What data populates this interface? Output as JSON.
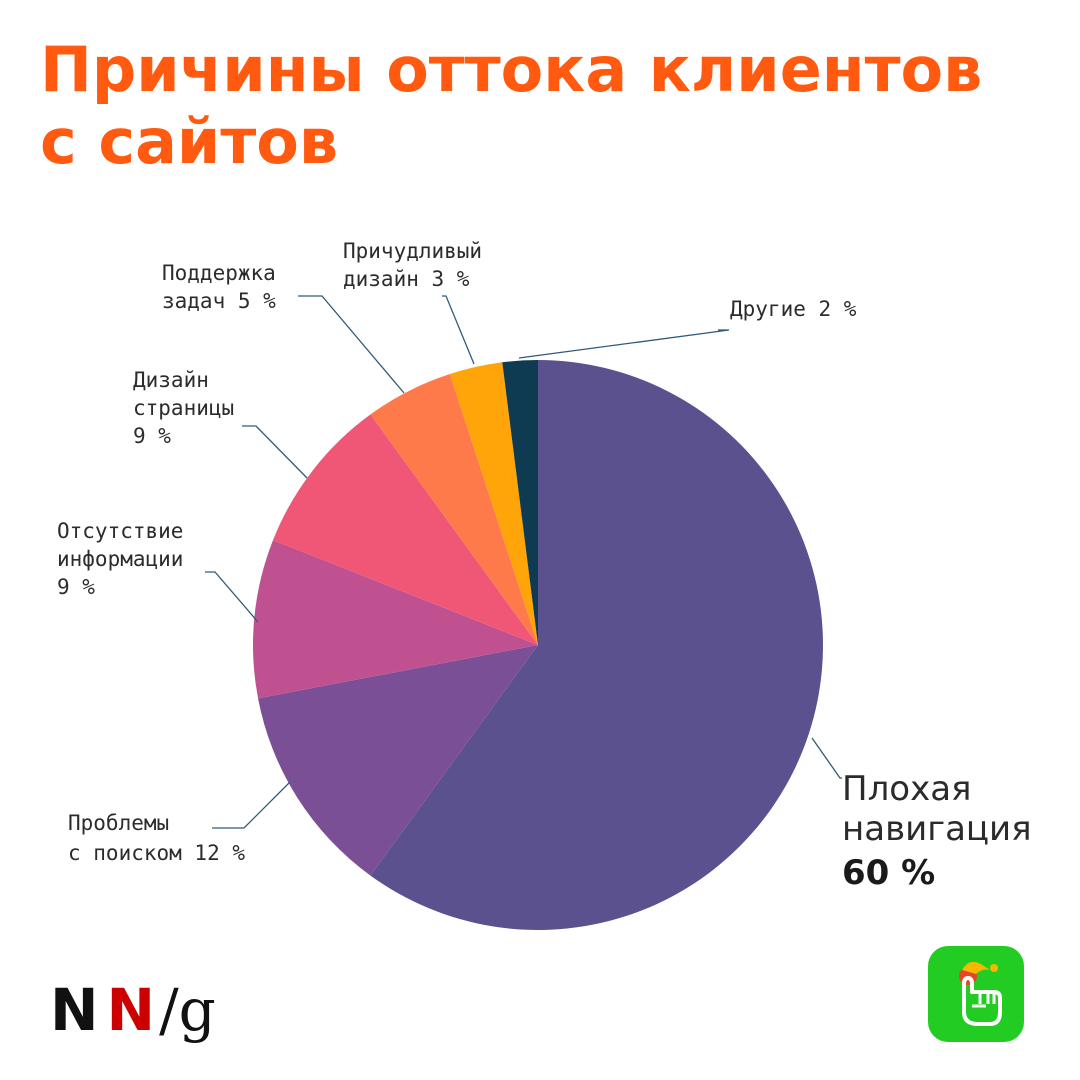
{
  "title_lines": [
    "Причины оттока клиентов",
    "с сайтов"
  ],
  "chart_data": {
    "type": "pie",
    "title": "Причины оттока клиентов с сайтов",
    "slices": [
      {
        "name": "Плохая навигация",
        "value": 60,
        "value_label": "60 %",
        "color": "#5b518f",
        "label_lines": [
          "Плохая",
          "навигация"
        ],
        "highlight": true
      },
      {
        "name": "Проблемы с поиском",
        "value": 12,
        "value_label": "12 %",
        "color": "#7a4f95",
        "label_lines": [
          "Проблемы",
          "с поиском 12 %"
        ]
      },
      {
        "name": "Отсутствие информации",
        "value": 9,
        "value_label": "9 %",
        "color": "#bf5190",
        "label_lines": [
          "Отсутствие",
          "информации",
          "9 %"
        ]
      },
      {
        "name": "Дизайн страницы",
        "value": 9,
        "value_label": "9 %",
        "color": "#f05777",
        "label_lines": [
          "Дизайн",
          "страницы",
          "9 %"
        ]
      },
      {
        "name": "Поддержка задач",
        "value": 5,
        "value_label": "5 %",
        "color": "#ff7a4b",
        "label_lines": [
          "Поддержка",
          "задач 5 %"
        ]
      },
      {
        "name": "Причудливый дизайн",
        "value": 3,
        "value_label": "3 %",
        "color": "#ffa50a",
        "label_lines": [
          "Причудливый",
          "дизайн 3 %"
        ]
      },
      {
        "name": "Другие",
        "value": 2,
        "value_label": "2 %",
        "color": "#0e3a52",
        "label_lines": [
          "Другие 2 %"
        ]
      }
    ],
    "start_angle_deg": 0,
    "direction": "clockwise",
    "legend": "none"
  },
  "logo": {
    "n1": "N",
    "n2": "N",
    "slash": "/",
    "g": "g"
  },
  "colors": {
    "title": "#ff5a0f",
    "leader": "#2f5b7a",
    "logo_red": "#cc0000",
    "app_icon_bg": "#22cc22"
  },
  "icons": {
    "app_icon": "green-pointing-hand-app-icon"
  }
}
